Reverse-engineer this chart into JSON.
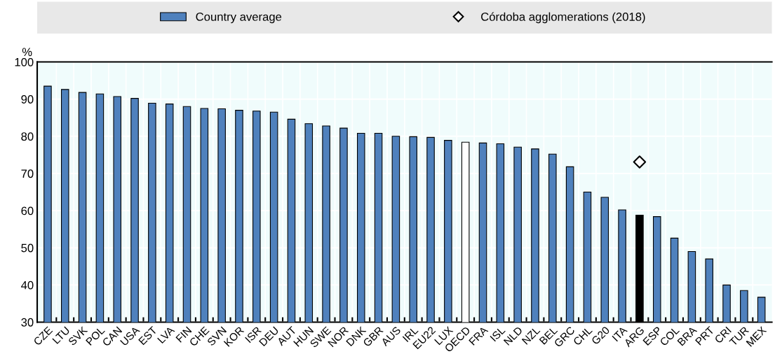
{
  "chart_data": {
    "type": "bar",
    "ylabel": "%",
    "categories": [
      "CZE",
      "LTU",
      "SVK",
      "POL",
      "CAN",
      "USA",
      "EST",
      "LVA",
      "FIN",
      "CHE",
      "SVN",
      "KOR",
      "ISR",
      "DEU",
      "AUT",
      "HUN",
      "SWE",
      "NOR",
      "DNK",
      "GBR",
      "AUS",
      "IRL",
      "EU22",
      "LUX",
      "OECD",
      "FRA",
      "ISL",
      "NLD",
      "NZL",
      "BEL",
      "GRC",
      "CHL",
      "G20",
      "ITA",
      "ARG",
      "ESP",
      "COL",
      "BRA",
      "PRT",
      "CRI",
      "TUR",
      "MEX"
    ],
    "series": [
      {
        "name": "Country average",
        "color": "#4f81bd",
        "colors": [
          "#4f81bd",
          "#4f81bd",
          "#4f81bd",
          "#4f81bd",
          "#4f81bd",
          "#4f81bd",
          "#4f81bd",
          "#4f81bd",
          "#4f81bd",
          "#4f81bd",
          "#4f81bd",
          "#4f81bd",
          "#4f81bd",
          "#4f81bd",
          "#4f81bd",
          "#4f81bd",
          "#4f81bd",
          "#4f81bd",
          "#4f81bd",
          "#4f81bd",
          "#4f81bd",
          "#4f81bd",
          "#4f81bd",
          "#4f81bd",
          "#ffffff",
          "#4f81bd",
          "#4f81bd",
          "#4f81bd",
          "#4f81bd",
          "#4f81bd",
          "#4f81bd",
          "#4f81bd",
          "#4f81bd",
          "#4f81bd",
          "#000000",
          "#4f81bd",
          "#4f81bd",
          "#4f81bd",
          "#4f81bd",
          "#4f81bd",
          "#4f81bd",
          "#4f81bd"
        ],
        "values": [
          93.5,
          92.6,
          91.8,
          91.4,
          90.7,
          90.2,
          88.9,
          88.7,
          88.0,
          87.5,
          87.4,
          87.0,
          86.8,
          86.5,
          84.6,
          83.4,
          82.8,
          82.2,
          80.8,
          80.8,
          80.0,
          79.9,
          79.7,
          78.9,
          78.4,
          78.2,
          78.0,
          77.1,
          76.6,
          75.2,
          71.8,
          65.0,
          63.6,
          60.2,
          58.8,
          58.4,
          52.6,
          49.0,
          47.0,
          40.0,
          38.5,
          36.7
        ]
      },
      {
        "name": "Córdoba agglomerations (2018)",
        "type": "scatter",
        "color": "#000000",
        "marker": "diamond",
        "values": [
          null,
          null,
          null,
          null,
          null,
          null,
          null,
          null,
          null,
          null,
          null,
          null,
          null,
          null,
          null,
          null,
          null,
          null,
          null,
          null,
          null,
          null,
          null,
          null,
          null,
          null,
          null,
          null,
          null,
          null,
          null,
          null,
          null,
          null,
          73.1,
          null,
          null,
          null,
          null,
          null,
          null,
          null
        ]
      }
    ],
    "ylim": [
      30,
      100
    ],
    "yticks": [
      30,
      40,
      50,
      60,
      70,
      80,
      90,
      100
    ],
    "grid": true,
    "legend": "top"
  }
}
